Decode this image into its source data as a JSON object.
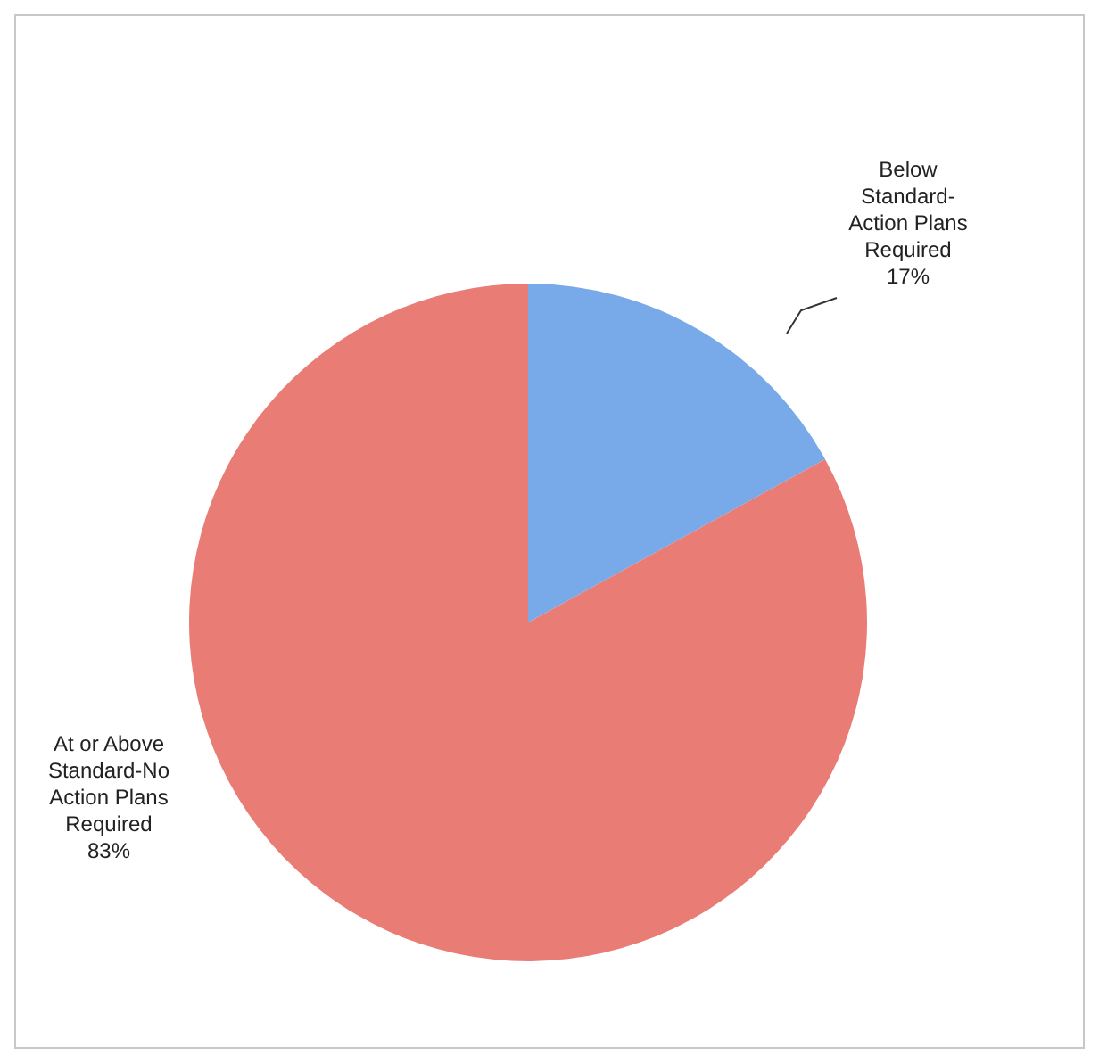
{
  "chart_data": {
    "type": "pie",
    "categories": [
      "Below Standard-Action Plans Required",
      "At or Above Standard-No Action Plans Required"
    ],
    "values": [
      17,
      83
    ],
    "value_labels": [
      "17%",
      "83%"
    ],
    "colors": [
      "#78a9e8",
      "#ea7c76"
    ]
  }
}
